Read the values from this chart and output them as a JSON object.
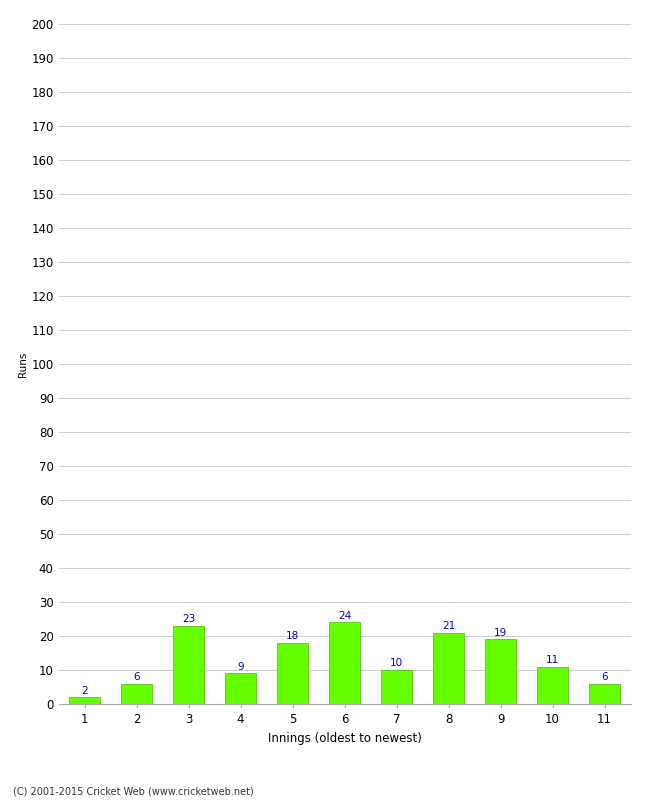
{
  "categories": [
    "1",
    "2",
    "3",
    "4",
    "5",
    "6",
    "7",
    "8",
    "9",
    "10",
    "11"
  ],
  "values": [
    2,
    6,
    23,
    9,
    18,
    24,
    10,
    21,
    19,
    11,
    6
  ],
  "bar_color": "#66ff00",
  "bar_edge_color": "#44bb00",
  "label_color": "#0000cc",
  "ylabel": "Runs",
  "xlabel": "Innings (oldest to newest)",
  "ylim": [
    0,
    200
  ],
  "ytick_step": 10,
  "background_color": "#ffffff",
  "grid_color": "#cccccc",
  "footer_text": "(C) 2001-2015 Cricket Web (www.cricketweb.net)",
  "label_fontsize": 7.5,
  "axis_fontsize": 8.5,
  "xlabel_fontsize": 8.5,
  "ylabel_fontsize": 7.5
}
